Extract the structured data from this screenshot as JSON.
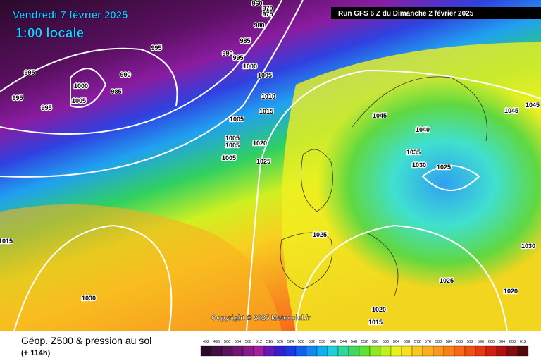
{
  "header": {
    "date": "Vendredi 7 février 2025",
    "time": "1:00 locale",
    "run": "Run GFS 6 Z du Dimanche 2 février 2025"
  },
  "map": {
    "isobar_labels": [
      "960",
      "970",
      "975",
      "980",
      "985",
      "990",
      "995",
      "995",
      "1000",
      "1005",
      "990",
      "995",
      "1000",
      "985",
      "995",
      "1005",
      "995",
      "1010",
      "1015",
      "1005",
      "1005",
      "1005",
      "1020",
      "1005",
      "1025",
      "1045",
      "1040",
      "1035",
      "1030",
      "1025",
      "1045",
      "1045",
      "1025",
      "1030",
      "1025",
      "1020",
      "1030",
      "1020",
      "1015",
      "1015"
    ],
    "copyright": "Copyright © 2025 Meteociel.fr"
  },
  "footer": {
    "title": "Géop. Z500 & pression au sol",
    "subtitle": "(+ 114h)",
    "scale": [
      492,
      496,
      500,
      504,
      508,
      512,
      516,
      520,
      524,
      528,
      532,
      536,
      540,
      544,
      548,
      552,
      556,
      560,
      564,
      568,
      572,
      576,
      580,
      584,
      588,
      592,
      596,
      600,
      604,
      608,
      612
    ]
  }
}
